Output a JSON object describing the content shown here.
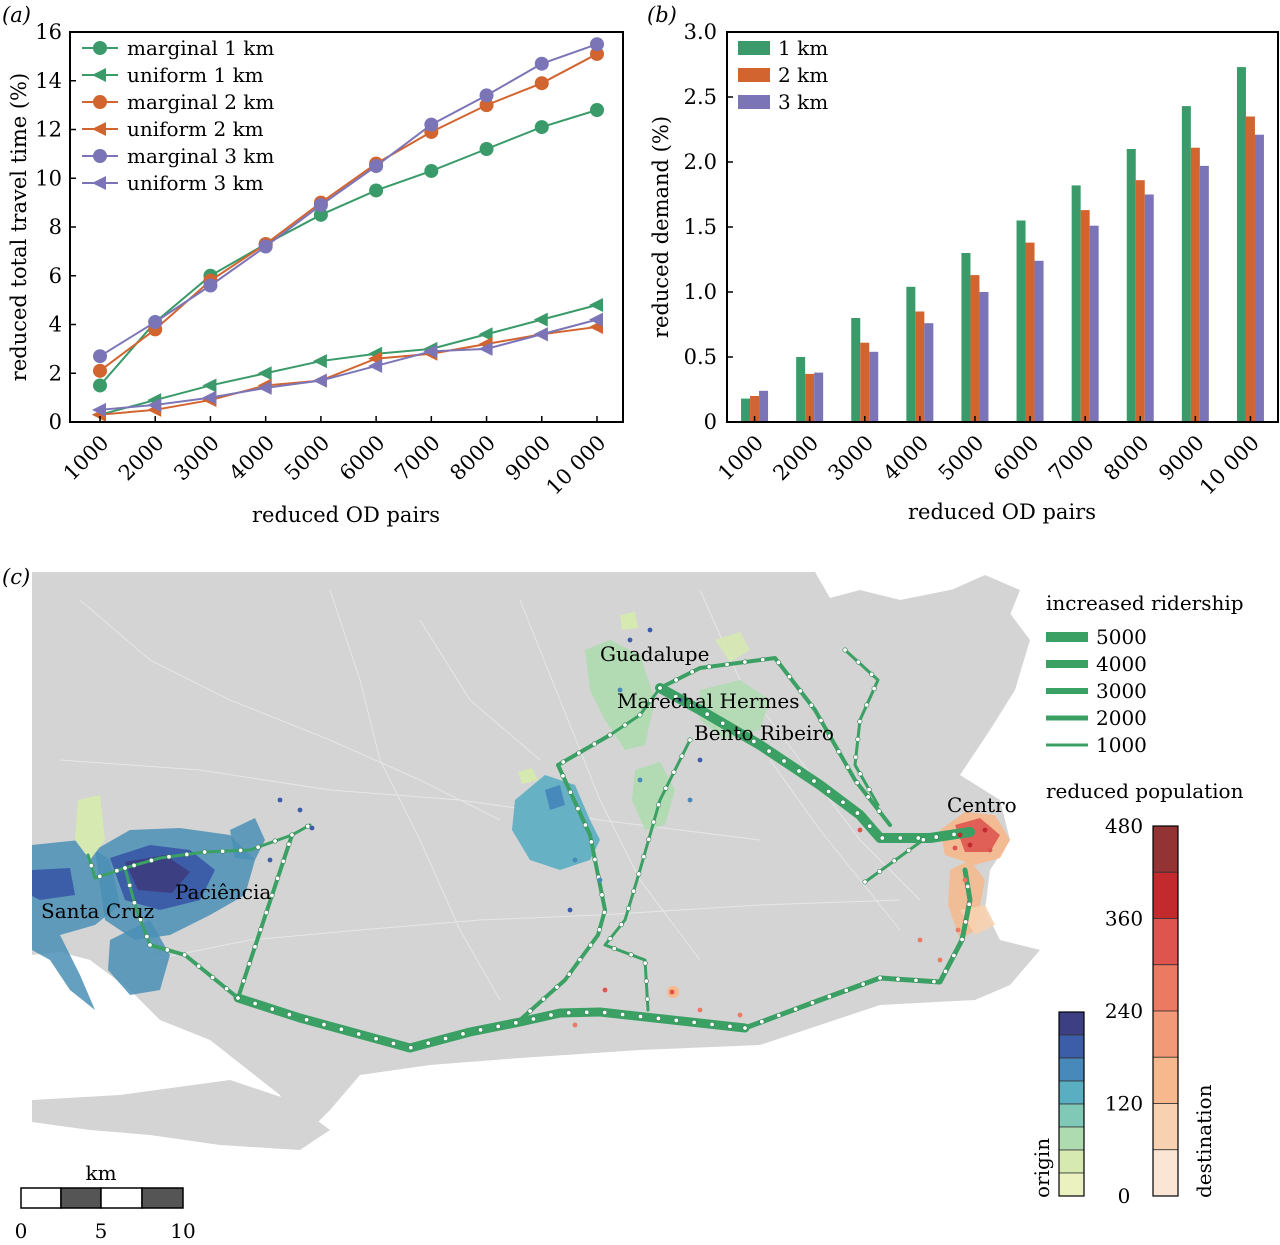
{
  "colors": {
    "green": "#3a9a6a",
    "orange": "#d2642f",
    "purple": "#7b75b8",
    "route": "#3aa063",
    "land": "#d4d4d4"
  },
  "chart_data": [
    {
      "panel": "(a)",
      "type": "line",
      "xlabel": "reduced OD pairs",
      "ylabel": "reduced total travel time (%)",
      "categories": [
        "1000",
        "2000",
        "3000",
        "4000",
        "5000",
        "6000",
        "7000",
        "8000",
        "9000",
        "10 000"
      ],
      "ylim": [
        0,
        16
      ],
      "yticks": [
        0,
        2,
        4,
        6,
        8,
        10,
        12,
        14,
        16
      ],
      "legend_position": "top-left",
      "series": [
        {
          "name": "marginal 1 km",
          "marker": "circle",
          "color": "#3a9a6a",
          "values": [
            1.5,
            4.1,
            6.0,
            7.3,
            8.5,
            9.5,
            10.3,
            11.2,
            12.1,
            12.8
          ]
        },
        {
          "name": "uniform 1 km",
          "marker": "triangle-left",
          "color": "#3a9a6a",
          "values": [
            0.3,
            0.9,
            1.5,
            2.0,
            2.5,
            2.8,
            3.0,
            3.6,
            4.2,
            4.8
          ]
        },
        {
          "name": "marginal 2 km",
          "marker": "circle",
          "color": "#d2642f",
          "values": [
            2.1,
            3.8,
            5.8,
            7.3,
            9.0,
            10.6,
            11.9,
            13.0,
            13.9,
            15.1
          ]
        },
        {
          "name": "uniform 2 km",
          "marker": "triangle-left",
          "color": "#d2642f",
          "values": [
            0.3,
            0.5,
            0.9,
            1.5,
            1.7,
            2.6,
            2.8,
            3.2,
            3.6,
            3.9
          ]
        },
        {
          "name": "marginal 3 km",
          "marker": "circle",
          "color": "#7b75b8",
          "values": [
            2.7,
            4.1,
            5.6,
            7.2,
            8.9,
            10.5,
            12.2,
            13.4,
            14.7,
            15.5
          ]
        },
        {
          "name": "uniform 3 km",
          "marker": "triangle-left",
          "color": "#7b75b8",
          "values": [
            0.5,
            0.7,
            1.0,
            1.4,
            1.7,
            2.3,
            2.9,
            3.0,
            3.6,
            4.2
          ]
        }
      ]
    },
    {
      "panel": "(b)",
      "type": "bar",
      "xlabel": "reduced OD pairs",
      "ylabel": "reduced demand (%)",
      "categories": [
        "1000",
        "2000",
        "3000",
        "4000",
        "5000",
        "6000",
        "7000",
        "8000",
        "9000",
        "10 000"
      ],
      "ylim": [
        0,
        3.0
      ],
      "yticks": [
        "0",
        "0.5",
        "1.0",
        "1.5",
        "2.0",
        "2.5",
        "3.0"
      ],
      "legend_position": "top-left",
      "series": [
        {
          "name": "1 km",
          "color": "#3a9a6a",
          "values": [
            0.18,
            0.5,
            0.8,
            1.04,
            1.3,
            1.55,
            1.82,
            2.1,
            2.43,
            2.73
          ]
        },
        {
          "name": "2 km",
          "color": "#d2642f",
          "values": [
            0.2,
            0.37,
            0.61,
            0.85,
            1.13,
            1.38,
            1.63,
            1.86,
            2.11,
            2.35
          ]
        },
        {
          "name": "3 km",
          "color": "#7b75b8",
          "values": [
            0.24,
            0.38,
            0.54,
            0.76,
            1.0,
            1.24,
            1.51,
            1.75,
            1.97,
            2.21
          ]
        }
      ]
    }
  ],
  "map": {
    "panel": "(c)",
    "places": [
      "Guadalupe",
      "Marechal Hermes",
      "Bento Ribeiro",
      "Centro",
      "Santa Cruz",
      "Paciência"
    ],
    "ridership_legend_title": "increased ridership",
    "ridership_levels": [
      "5000",
      "4000",
      "3000",
      "2000",
      "1000"
    ],
    "population_title": "reduced population",
    "colorbar_ticks": [
      "0",
      "120",
      "240",
      "360",
      "480"
    ],
    "origin_label": "origin",
    "destination_label": "destination",
    "origin_colors": [
      "#ebf2c0",
      "#d6e9b1",
      "#aedcb0",
      "#80c9b6",
      "#5aaec2",
      "#4889bb",
      "#3c5ea9",
      "#3d3f83"
    ],
    "destination_colors": [
      "#fbe6d5",
      "#f8d1b0",
      "#f6b88c",
      "#f29a77",
      "#ec7a62",
      "#de5550",
      "#c22a2e",
      "#943333"
    ],
    "scale_unit": "km",
    "scale_ticks": [
      "0",
      "5",
      "10"
    ]
  }
}
